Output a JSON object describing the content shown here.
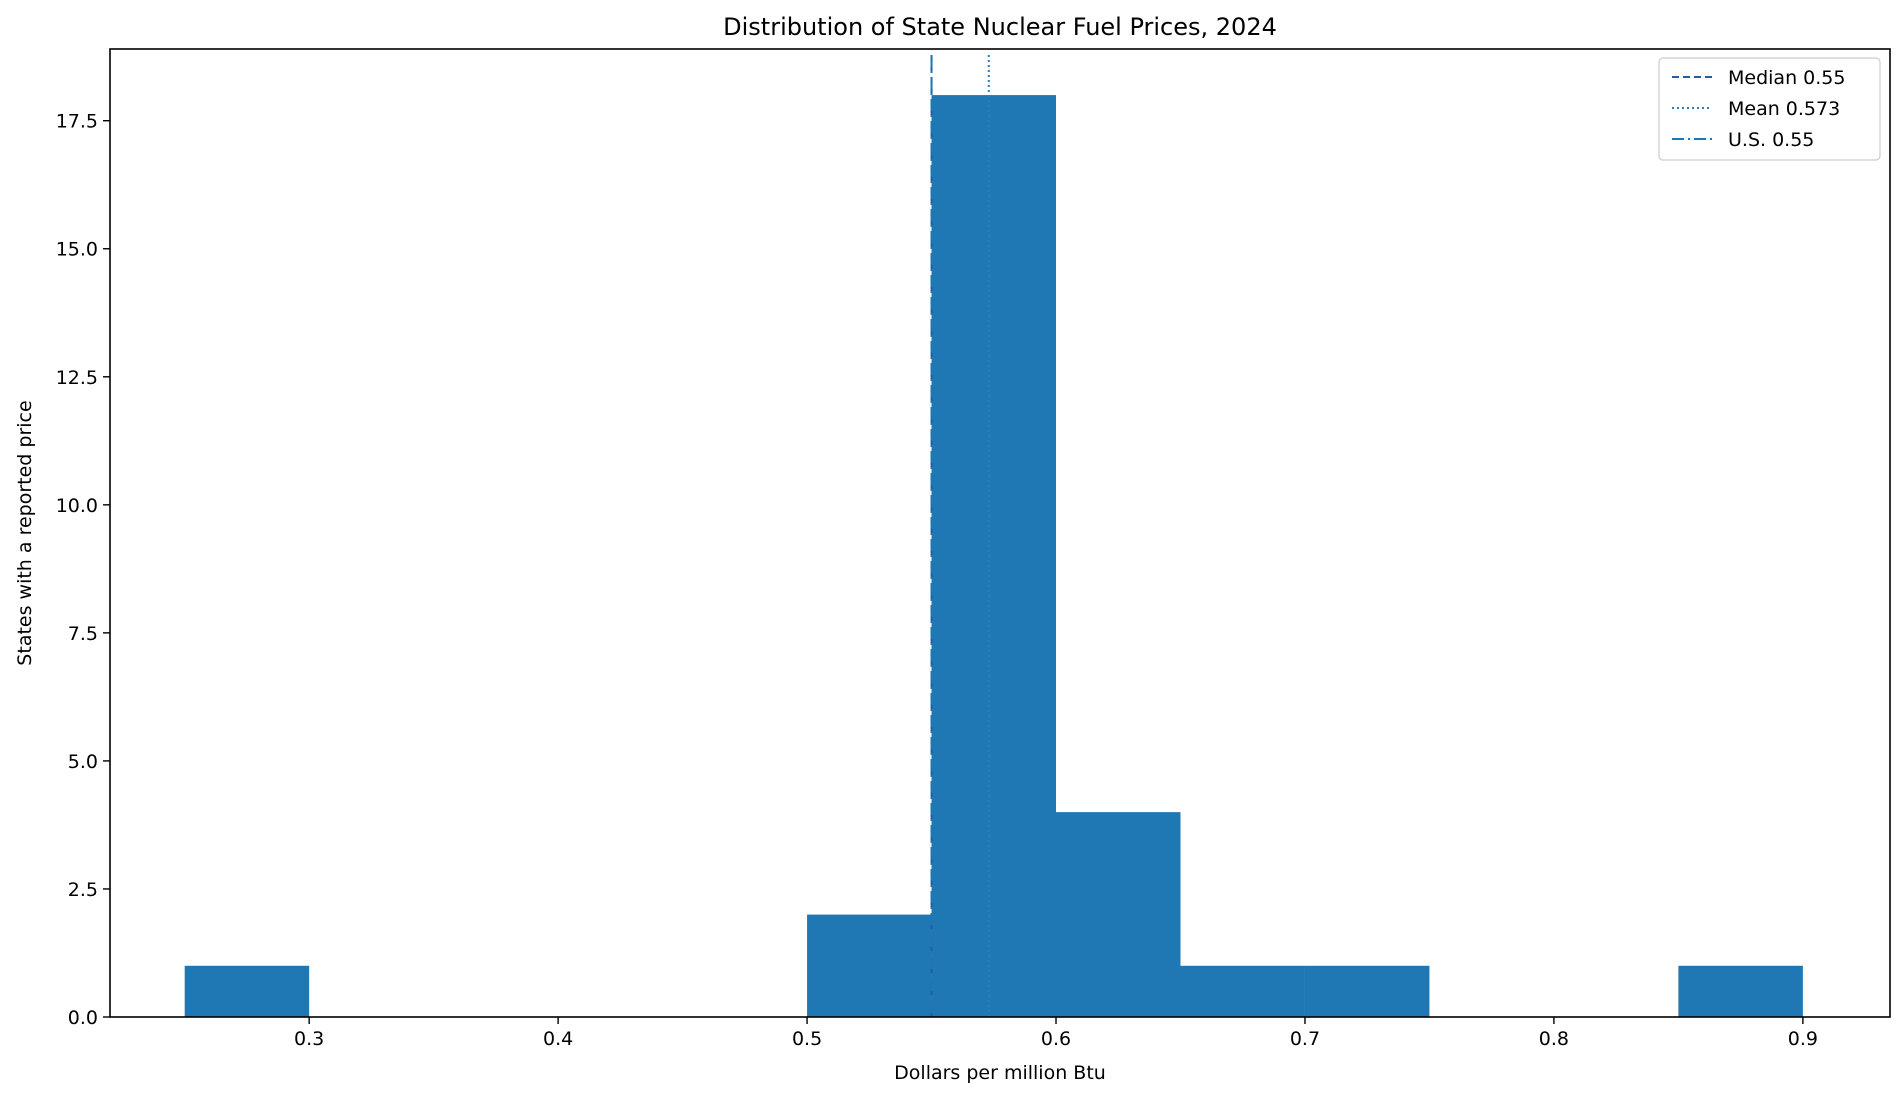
{
  "chart_data": {
    "type": "bar",
    "subtype": "histogram",
    "title": "Distribution of State Nuclear Fuel Prices, 2024",
    "xlabel": "Dollars per million Btu",
    "ylabel": "States with a reported price",
    "xlim": [
      0.22,
      0.935
    ],
    "ylim": [
      0,
      18.9
    ],
    "xticks": [
      0.3,
      0.4,
      0.5,
      0.6,
      0.7,
      0.8,
      0.9
    ],
    "xtick_labels": [
      "0.3",
      "0.4",
      "0.5",
      "0.6",
      "0.7",
      "0.8",
      "0.9"
    ],
    "yticks": [
      0,
      2.5,
      5,
      7.5,
      10,
      12.5,
      15,
      17.5
    ],
    "ytick_labels": [
      "0.0",
      "2.5",
      "5.0",
      "7.5",
      "10.0",
      "12.5",
      "15.0",
      "17.5"
    ],
    "bar_color": "#1f77b4",
    "bins": [
      {
        "x0": 0.25,
        "x1": 0.3,
        "count": 1
      },
      {
        "x0": 0.3,
        "x1": 0.35,
        "count": 0
      },
      {
        "x0": 0.35,
        "x1": 0.4,
        "count": 0
      },
      {
        "x0": 0.4,
        "x1": 0.45,
        "count": 0
      },
      {
        "x0": 0.45,
        "x1": 0.5,
        "count": 0
      },
      {
        "x0": 0.5,
        "x1": 0.55,
        "count": 2
      },
      {
        "x0": 0.55,
        "x1": 0.6,
        "count": 18
      },
      {
        "x0": 0.6,
        "x1": 0.65,
        "count": 4
      },
      {
        "x0": 0.65,
        "x1": 0.7,
        "count": 1
      },
      {
        "x0": 0.7,
        "x1": 0.75,
        "count": 1
      },
      {
        "x0": 0.75,
        "x1": 0.8,
        "count": 0
      },
      {
        "x0": 0.8,
        "x1": 0.85,
        "count": 0
      },
      {
        "x0": 0.85,
        "x1": 0.9,
        "count": 1
      }
    ],
    "reference_lines": [
      {
        "label": "Median 0.55",
        "x": 0.55,
        "style": "dashed",
        "color": "#1f5fa8"
      },
      {
        "label": "Mean 0.573",
        "x": 0.573,
        "style": "dotted",
        "color": "#2a7fb8"
      },
      {
        "label": "U.S. 0.55",
        "x": 0.55,
        "style": "dashdot",
        "color": "#1f77b4"
      }
    ],
    "legend_position": "top-right",
    "grid": false
  }
}
